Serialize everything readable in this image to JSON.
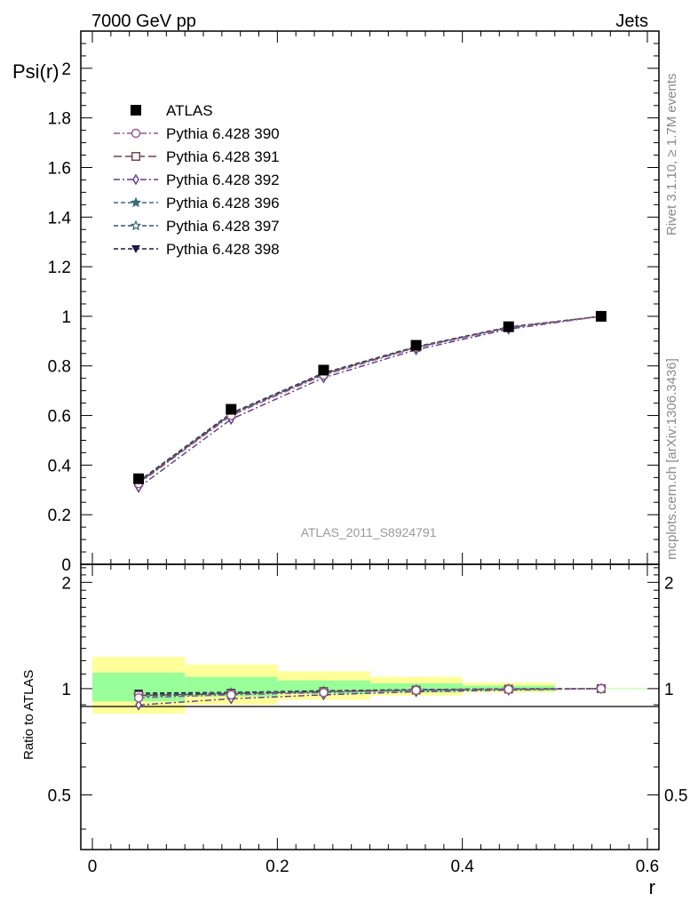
{
  "header": {
    "left": "7000 GeV pp",
    "right": "Jets",
    "side_top": "Rivet 3.1.10, ≥ 1.7M events",
    "side_bottom": "mcplots.cern.ch [arXiv:1306.3436]",
    "watermark": "ATLAS_2011_S8924791"
  },
  "chart_data": [
    {
      "type": "line",
      "ylabel": "Psi(r)",
      "xlim": [
        -0.0125,
        0.6125
      ],
      "ylim": [
        0,
        2.15
      ],
      "y_ticks": [
        0,
        0.2,
        0.4,
        0.6,
        0.8,
        1,
        1.2,
        1.4,
        1.6,
        1.8,
        2
      ],
      "y_tick_labels": [
        "0",
        "0.2",
        "0.4",
        "0.6",
        "0.8",
        "1",
        "1.2",
        "1.4",
        "1.6",
        "1.8",
        "2"
      ],
      "legend_position": "top-left",
      "x": [
        0.05,
        0.15,
        0.25,
        0.35,
        0.45,
        0.55
      ],
      "series": [
        {
          "name": "ATLAS",
          "color": "#000000",
          "marker": "square-filled",
          "values": [
            0.345,
            0.625,
            0.783,
            0.883,
            0.958,
            1.0
          ]
        },
        {
          "name": "Pythia 6.428 390",
          "color": "#8c5a8c",
          "marker": "circle-open",
          "values": [
            0.325,
            0.6,
            0.763,
            0.873,
            0.953,
            1.0
          ]
        },
        {
          "name": "Pythia 6.428 391",
          "color": "#6b4048",
          "marker": "square-open",
          "values": [
            0.33,
            0.605,
            0.768,
            0.875,
            0.955,
            1.0
          ]
        },
        {
          "name": "Pythia 6.428 392",
          "color": "#5a3a8a",
          "marker": "diamond-open",
          "values": [
            0.31,
            0.585,
            0.752,
            0.865,
            0.948,
            1.0
          ]
        },
        {
          "name": "Pythia 6.428 396",
          "color": "#3a6a80",
          "marker": "star-filled",
          "values": [
            0.328,
            0.605,
            0.768,
            0.875,
            0.955,
            1.0
          ]
        },
        {
          "name": "Pythia 6.428 397",
          "color": "#2f5670",
          "marker": "star-open",
          "values": [
            0.332,
            0.608,
            0.77,
            0.877,
            0.956,
            1.0
          ]
        },
        {
          "name": "Pythia 6.428 398",
          "color": "#1a1a4a",
          "marker": "triangle-down-filled",
          "values": [
            0.335,
            0.61,
            0.772,
            0.878,
            0.957,
            1.0
          ]
        }
      ]
    },
    {
      "type": "line",
      "ylabel": "Ratio to ATLAS",
      "xlabel": "r",
      "xlim": [
        -0.0125,
        0.6125
      ],
      "ylim": [
        0.35,
        2.25
      ],
      "x_ticks": [
        0,
        0.2,
        0.4,
        0.6
      ],
      "x_tick_labels": [
        "0",
        "0.2",
        "0.4",
        "0.6"
      ],
      "y_ticks": [
        0.5,
        1,
        2
      ],
      "y_tick_labels": [
        "0.5",
        "1",
        "2"
      ],
      "bins": [
        [
          0.0,
          0.1
        ],
        [
          0.1,
          0.2
        ],
        [
          0.2,
          0.3
        ],
        [
          0.3,
          0.4
        ],
        [
          0.4,
          0.5
        ],
        [
          0.5,
          0.6
        ]
      ],
      "band_inner": [
        [
          0.92,
          1.11
        ],
        [
          0.95,
          1.08
        ],
        [
          0.965,
          1.055
        ],
        [
          0.975,
          1.035
        ],
        [
          0.985,
          1.02
        ],
        [
          0.998,
          1.002
        ]
      ],
      "band_outer": [
        [
          0.85,
          1.23
        ],
        [
          0.9,
          1.17
        ],
        [
          0.93,
          1.12
        ],
        [
          0.955,
          1.08
        ],
        [
          0.975,
          1.04
        ],
        [
          0.997,
          1.003
        ]
      ],
      "band_colors": {
        "inner": "#99ff99",
        "outer": "#ffff99"
      },
      "x": [
        0.05,
        0.15,
        0.25,
        0.35,
        0.45,
        0.55
      ],
      "series": [
        {
          "name": "Pythia 6.428 390",
          "values": [
            0.942,
            0.96,
            0.975,
            0.989,
            0.995,
            1.0
          ]
        },
        {
          "name": "Pythia 6.428 391",
          "values": [
            0.957,
            0.968,
            0.981,
            0.991,
            0.997,
            1.0
          ]
        },
        {
          "name": "Pythia 6.428 392",
          "values": [
            0.899,
            0.936,
            0.96,
            0.98,
            0.99,
            1.0
          ]
        },
        {
          "name": "Pythia 6.428 396",
          "values": [
            0.951,
            0.968,
            0.981,
            0.991,
            0.997,
            1.0
          ]
        },
        {
          "name": "Pythia 6.428 397",
          "values": [
            0.962,
            0.973,
            0.983,
            0.993,
            0.998,
            1.0
          ]
        },
        {
          "name": "Pythia 6.428 398",
          "values": [
            0.971,
            0.976,
            0.986,
            0.994,
            0.999,
            1.0
          ]
        }
      ]
    }
  ]
}
